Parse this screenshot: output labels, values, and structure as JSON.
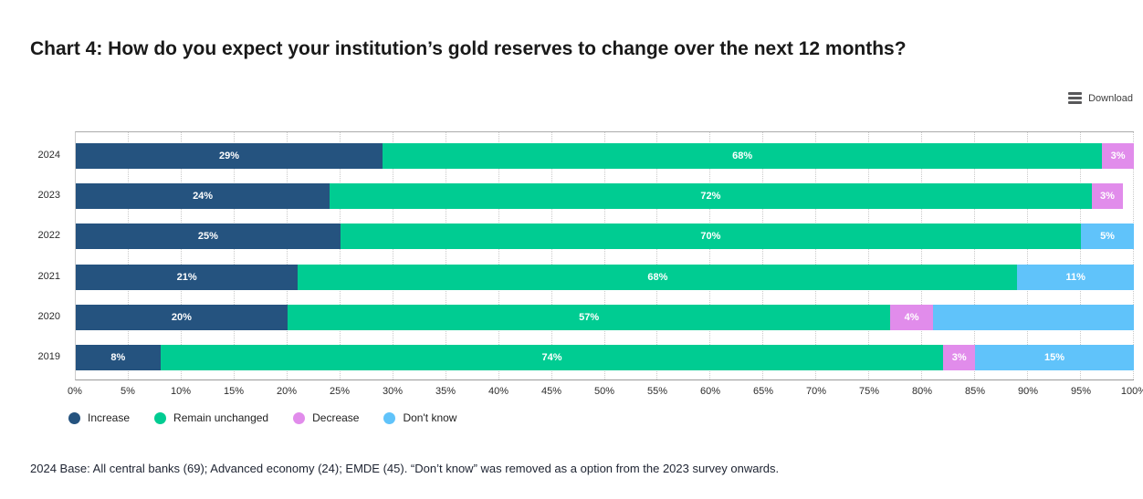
{
  "header": {
    "title": "Chart 4: How do you expect your institution’s gold reserves to change over the next 12 months?",
    "download_label": "Download"
  },
  "footnote": "2024 Base: All central banks (69); Advanced economy (24); EMDE (45). “Don’t know” was removed as a option from the 2023 survey onwards.",
  "colors": {
    "increase": "#25537F",
    "remain_unchanged": "#00CC92",
    "decrease": "#E18CEB",
    "dont_know": "#60C3FA",
    "grid": "#C9C9C9",
    "axis_line": "#9A9A9A"
  },
  "chart_data": {
    "type": "bar",
    "orientation": "horizontal",
    "stacked": true,
    "title": "Chart 4: How do you expect your institution’s gold reserves to change over the next 12 months?",
    "categories": [
      "2024",
      "2023",
      "2022",
      "2021",
      "2020",
      "2019"
    ],
    "series": [
      {
        "name": "Increase",
        "color": "#25537F",
        "values": [
          29,
          24,
          25,
          21,
          20,
          8
        ]
      },
      {
        "name": "Remain unchanged",
        "color": "#00CC92",
        "values": [
          68,
          72,
          70,
          68,
          57,
          74
        ]
      },
      {
        "name": "Decrease",
        "color": "#E18CEB",
        "values": [
          3,
          3,
          0,
          0,
          4,
          3
        ]
      },
      {
        "name": "Don't know",
        "color": "#60C3FA",
        "values": [
          0,
          0,
          5,
          11,
          19,
          15
        ],
        "label_hidden_for": [
          "2020"
        ]
      }
    ],
    "value_suffix": "%",
    "xlim": [
      0,
      100
    ],
    "x_tick_step": 5,
    "x_tick_labels": [
      "0%",
      "5%",
      "10%",
      "15%",
      "20%",
      "25%",
      "30%",
      "35%",
      "40%",
      "45%",
      "50%",
      "55%",
      "60%",
      "65%",
      "70%",
      "75%",
      "80%",
      "85%",
      "90%",
      "95%",
      "100%"
    ],
    "grid": "vertical-dotted",
    "legend_position": "bottom-left",
    "data_labels": "white-inside-segments"
  }
}
